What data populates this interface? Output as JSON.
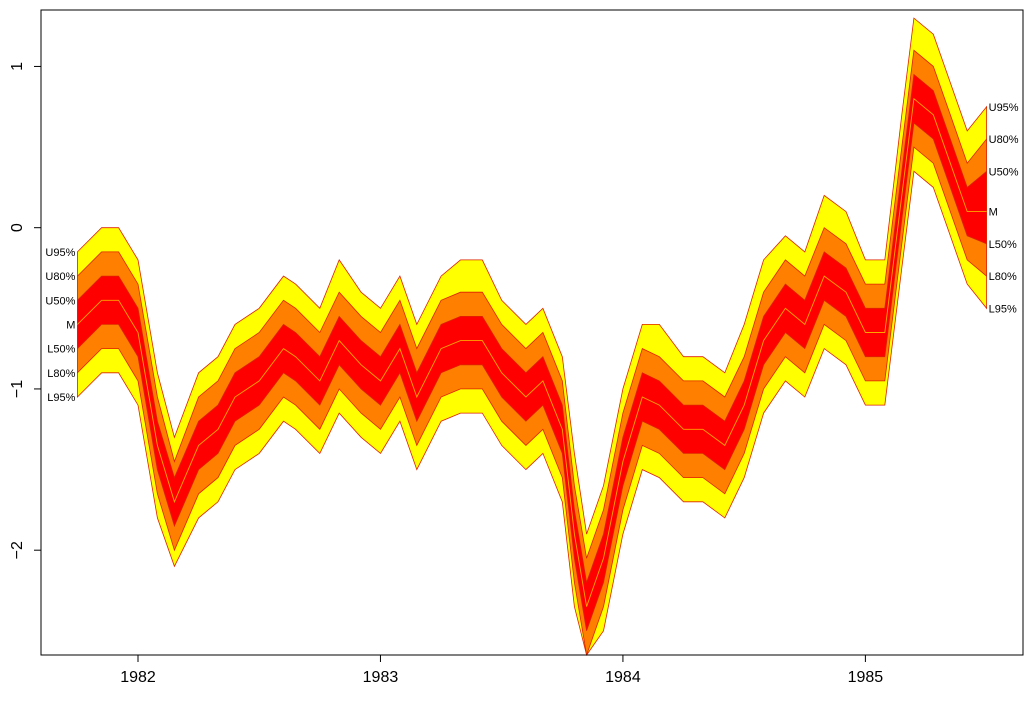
{
  "chart_data": {
    "type": "area",
    "title": "",
    "xlabel": "",
    "ylabel": "",
    "xlim": [
      1981.6,
      1985.65
    ],
    "ylim": [
      -2.65,
      1.35
    ],
    "grid": false,
    "legend": "none",
    "x_ticks": [
      1982,
      1983,
      1984,
      1985
    ],
    "x_tick_labels": [
      "1982",
      "1983",
      "1984",
      "1985"
    ],
    "y_ticks": [
      -2,
      -1,
      0,
      1
    ],
    "y_tick_labels": [
      "−2",
      "−1",
      "0",
      "1"
    ],
    "x": [
      1981.75,
      1981.85,
      1981.92,
      1982.0,
      1982.08,
      1982.15,
      1982.25,
      1982.33,
      1982.4,
      1982.5,
      1982.6,
      1982.65,
      1982.75,
      1982.83,
      1982.92,
      1983.0,
      1983.08,
      1983.15,
      1983.25,
      1983.33,
      1983.42,
      1983.5,
      1983.6,
      1983.67,
      1983.75,
      1983.8,
      1983.85,
      1983.92,
      1984.0,
      1984.08,
      1984.15,
      1984.25,
      1984.33,
      1984.42,
      1984.5,
      1984.58,
      1984.67,
      1984.75,
      1984.83,
      1984.92,
      1985.0,
      1985.08,
      1985.15,
      1985.2,
      1985.28,
      1985.35,
      1985.42,
      1985.5
    ],
    "series": [
      {
        "name": "U95%",
        "color": "#FFFF00",
        "values": [
          -0.15,
          0.0,
          0.0,
          -0.2,
          -0.9,
          -1.3,
          -0.9,
          -0.8,
          -0.6,
          -0.5,
          -0.3,
          -0.35,
          -0.5,
          -0.2,
          -0.4,
          -0.5,
          -0.3,
          -0.6,
          -0.3,
          -0.2,
          -0.2,
          -0.45,
          -0.6,
          -0.5,
          -0.8,
          -1.4,
          -1.9,
          -1.6,
          -1.0,
          -0.6,
          -0.6,
          -0.8,
          -0.8,
          -0.9,
          -0.6,
          -0.2,
          -0.05,
          -0.15,
          0.2,
          0.1,
          -0.2,
          -0.2,
          0.7,
          1.3,
          1.2,
          0.9,
          0.6,
          0.75
        ]
      },
      {
        "name": "U80%",
        "color": "#FF8000",
        "values": [
          -0.3,
          -0.15,
          -0.15,
          -0.35,
          -1.05,
          -1.45,
          -1.05,
          -0.95,
          -0.75,
          -0.65,
          -0.45,
          -0.5,
          -0.65,
          -0.4,
          -0.55,
          -0.65,
          -0.45,
          -0.75,
          -0.45,
          -0.4,
          -0.4,
          -0.6,
          -0.75,
          -0.65,
          -0.95,
          -1.6,
          -2.05,
          -1.75,
          -1.15,
          -0.75,
          -0.8,
          -0.95,
          -0.95,
          -1.05,
          -0.8,
          -0.4,
          -0.2,
          -0.3,
          0.0,
          -0.1,
          -0.35,
          -0.35,
          0.5,
          1.1,
          1.0,
          0.7,
          0.4,
          0.55
        ]
      },
      {
        "name": "U50%",
        "color": "#FF0000",
        "values": [
          -0.45,
          -0.3,
          -0.3,
          -0.5,
          -1.2,
          -1.55,
          -1.2,
          -1.1,
          -0.9,
          -0.8,
          -0.6,
          -0.65,
          -0.8,
          -0.55,
          -0.7,
          -0.8,
          -0.6,
          -0.9,
          -0.6,
          -0.55,
          -0.55,
          -0.75,
          -0.9,
          -0.8,
          -1.1,
          -1.75,
          -2.2,
          -1.9,
          -1.3,
          -0.9,
          -0.95,
          -1.1,
          -1.1,
          -1.2,
          -0.95,
          -0.55,
          -0.35,
          -0.45,
          -0.15,
          -0.25,
          -0.5,
          -0.5,
          0.35,
          0.95,
          0.85,
          0.55,
          0.25,
          0.35
        ]
      },
      {
        "name": "M",
        "color": "#FFA500",
        "values": [
          -0.6,
          -0.45,
          -0.45,
          -0.65,
          -1.35,
          -1.7,
          -1.35,
          -1.25,
          -1.05,
          -0.95,
          -0.75,
          -0.8,
          -0.95,
          -0.7,
          -0.85,
          -0.95,
          -0.75,
          -1.05,
          -0.75,
          -0.7,
          -0.7,
          -0.9,
          -1.05,
          -0.95,
          -1.25,
          -1.9,
          -2.35,
          -2.05,
          -1.45,
          -1.05,
          -1.1,
          -1.25,
          -1.25,
          -1.35,
          -1.1,
          -0.7,
          -0.5,
          -0.6,
          -0.3,
          -0.4,
          -0.65,
          -0.65,
          0.2,
          0.8,
          0.7,
          0.4,
          0.1,
          0.1
        ]
      },
      {
        "name": "L50%",
        "color": "#FF0000",
        "values": [
          -0.75,
          -0.6,
          -0.6,
          -0.8,
          -1.5,
          -1.85,
          -1.5,
          -1.4,
          -1.2,
          -1.1,
          -0.9,
          -0.95,
          -1.1,
          -0.85,
          -1.0,
          -1.1,
          -0.9,
          -1.2,
          -0.9,
          -0.85,
          -0.85,
          -1.05,
          -1.2,
          -1.1,
          -1.4,
          -2.05,
          -2.5,
          -2.2,
          -1.6,
          -1.2,
          -1.25,
          -1.4,
          -1.4,
          -1.5,
          -1.25,
          -0.85,
          -0.65,
          -0.75,
          -0.45,
          -0.55,
          -0.8,
          -0.8,
          0.05,
          0.65,
          0.55,
          0.25,
          -0.05,
          -0.1
        ]
      },
      {
        "name": "L80%",
        "color": "#FF8000",
        "values": [
          -0.9,
          -0.75,
          -0.75,
          -0.95,
          -1.65,
          -2.0,
          -1.65,
          -1.55,
          -1.35,
          -1.25,
          -1.05,
          -1.1,
          -1.25,
          -1.0,
          -1.15,
          -1.25,
          -1.05,
          -1.35,
          -1.05,
          -1.0,
          -1.0,
          -1.2,
          -1.35,
          -1.25,
          -1.55,
          -2.2,
          -2.65,
          -2.35,
          -1.75,
          -1.35,
          -1.4,
          -1.55,
          -1.55,
          -1.65,
          -1.4,
          -1.0,
          -0.8,
          -0.9,
          -0.6,
          -0.7,
          -0.95,
          -0.95,
          -0.1,
          0.5,
          0.4,
          0.1,
          -0.2,
          -0.3
        ]
      },
      {
        "name": "L95%",
        "color": "#FFFF00",
        "values": [
          -1.05,
          -0.9,
          -0.9,
          -1.1,
          -1.8,
          -2.1,
          -1.8,
          -1.7,
          -1.5,
          -1.4,
          -1.2,
          -1.25,
          -1.4,
          -1.15,
          -1.3,
          -1.4,
          -1.2,
          -1.5,
          -1.2,
          -1.15,
          -1.15,
          -1.35,
          -1.5,
          -1.4,
          -1.7,
          -2.35,
          -2.8,
          -2.5,
          -1.9,
          -1.5,
          -1.55,
          -1.7,
          -1.7,
          -1.8,
          -1.55,
          -1.15,
          -0.95,
          -1.05,
          -0.75,
          -0.85,
          -1.1,
          -1.1,
          -0.25,
          0.35,
          0.25,
          -0.05,
          -0.35,
          -0.5
        ]
      }
    ],
    "band_labels_left": [
      "U95%",
      "U80%",
      "U50%",
      "M",
      "L50%",
      "L80%",
      "L95%"
    ],
    "band_labels_right": [
      "U95%",
      "U80%",
      "U50%",
      "M",
      "L50%",
      "L80%",
      "L95%"
    ]
  }
}
